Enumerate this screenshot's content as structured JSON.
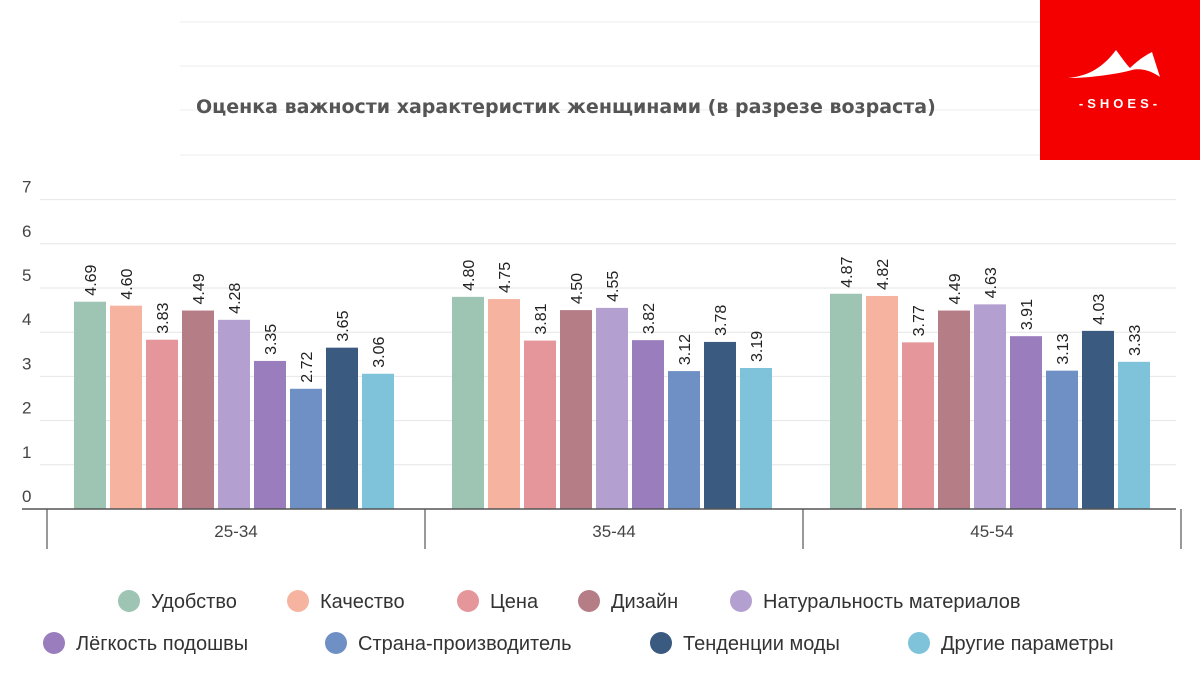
{
  "logo": {
    "text": "-SHOES-",
    "color": "#f40000"
  },
  "chart_data": {
    "type": "bar",
    "title": "Оценка важности характеристик женщинами (в разрезе возраста)",
    "categories": [
      "25-34",
      "35-44",
      "45-54"
    ],
    "yticks": [
      "0",
      "1",
      "2",
      "3",
      "4",
      "5",
      "6",
      "7"
    ],
    "ylim": [
      0,
      7
    ],
    "grid": true,
    "legend_position": "bottom",
    "series": [
      {
        "name": "Удобство",
        "color": "#9ec4b3",
        "values": [
          4.69,
          4.8,
          4.87
        ],
        "labels": [
          "4.69",
          "4.80",
          "4.87"
        ]
      },
      {
        "name": "Качество",
        "color": "#f6b4a0",
        "values": [
          4.6,
          4.75,
          4.82
        ],
        "labels": [
          "4.60",
          "4.75",
          "4.82"
        ]
      },
      {
        "name": "Цена",
        "color": "#e4969a",
        "values": [
          3.83,
          3.81,
          3.77
        ],
        "labels": [
          "3.83",
          "3.81",
          "3.77"
        ]
      },
      {
        "name": "Дизайн",
        "color": "#b57d86",
        "values": [
          4.49,
          4.5,
          4.49
        ],
        "labels": [
          "4.49",
          "4.50",
          "4.49"
        ]
      },
      {
        "name": "Натуральность материалов",
        "color": "#b3a0d0",
        "values": [
          4.28,
          4.55,
          4.63
        ],
        "labels": [
          "4.28",
          "4.55",
          "4.63"
        ]
      },
      {
        "name": "Лёгкость подошвы",
        "color": "#9a7dbd",
        "values": [
          3.35,
          3.82,
          3.91
        ],
        "labels": [
          "3.35",
          "3.82",
          "3.91"
        ]
      },
      {
        "name": "Страна-производитель",
        "color": "#6f90c4",
        "values": [
          2.72,
          3.12,
          3.13
        ],
        "labels": [
          "2.72",
          "3.12",
          "3.13"
        ]
      },
      {
        "name": "Тенденции моды",
        "color": "#3a5a80",
        "values": [
          3.65,
          3.78,
          4.03
        ],
        "labels": [
          "3.65",
          "3.78",
          "4.03"
        ]
      },
      {
        "name": "Другие параметры",
        "color": "#7fc3da",
        "values": [
          3.06,
          3.19,
          3.33
        ],
        "labels": [
          "3.06",
          "3.19",
          "3.33"
        ]
      }
    ]
  }
}
